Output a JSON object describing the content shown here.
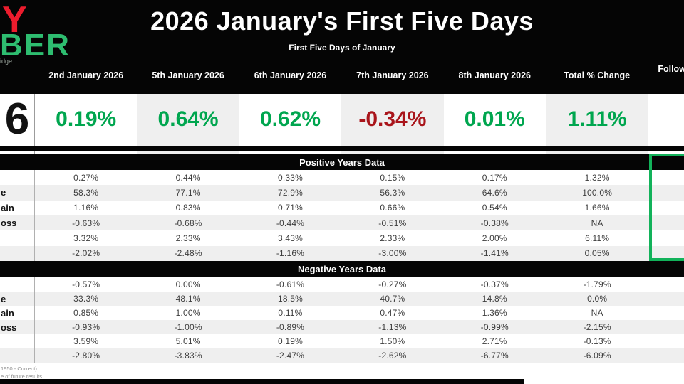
{
  "logo": {
    "fragment_red": "Y",
    "fragment_green": "BER",
    "fragment_gray": "idge"
  },
  "chart_data": {
    "type": "table",
    "title": "2026 January's First Five Days",
    "subtitle": "First Five Days of January",
    "columns": [
      "2nd January 2026",
      "5th January 2026",
      "6th January 2026",
      "7th January 2026",
      "8th January 2026",
      "Total % Change",
      "Follow"
    ],
    "current_year_row": {
      "label": "6",
      "values": [
        "0.19%",
        "0.64%",
        "0.62%",
        "-0.34%",
        "0.01%",
        "1.11%"
      ]
    },
    "sections": [
      {
        "title": "Positive Years Data",
        "rows": [
          {
            "label": "",
            "values": [
              "0.27%",
              "0.44%",
              "0.33%",
              "0.15%",
              "0.17%",
              "1.32%"
            ]
          },
          {
            "label": "e",
            "values": [
              "58.3%",
              "77.1%",
              "72.9%",
              "56.3%",
              "64.6%",
              "100.0%"
            ]
          },
          {
            "label": "ain",
            "values": [
              "1.16%",
              "0.83%",
              "0.71%",
              "0.66%",
              "0.54%",
              "1.66%"
            ]
          },
          {
            "label": "oss",
            "values": [
              "-0.63%",
              "-0.68%",
              "-0.44%",
              "-0.51%",
              "-0.38%",
              "NA"
            ]
          },
          {
            "label": "",
            "values": [
              "3.32%",
              "2.33%",
              "3.43%",
              "2.33%",
              "2.00%",
              "6.11%"
            ]
          },
          {
            "label": "",
            "values": [
              "-2.02%",
              "-2.48%",
              "-1.16%",
              "-3.00%",
              "-1.41%",
              "0.05%"
            ]
          }
        ]
      },
      {
        "title": "Negative Years Data",
        "rows": [
          {
            "label": "",
            "values": [
              "-0.57%",
              "0.00%",
              "-0.61%",
              "-0.27%",
              "-0.37%",
              "-1.79%"
            ]
          },
          {
            "label": "e",
            "values": [
              "33.3%",
              "48.1%",
              "18.5%",
              "40.7%",
              "14.8%",
              "0.0%"
            ]
          },
          {
            "label": "ain",
            "values": [
              "0.85%",
              "1.00%",
              "0.11%",
              "0.47%",
              "1.36%",
              "NA"
            ]
          },
          {
            "label": "oss",
            "values": [
              "-0.93%",
              "-1.00%",
              "-0.89%",
              "-1.13%",
              "-0.99%",
              "-2.15%"
            ]
          },
          {
            "label": "",
            "values": [
              "3.59%",
              "5.01%",
              "0.19%",
              "1.50%",
              "2.71%",
              "-0.13%"
            ]
          },
          {
            "label": "",
            "values": [
              "-2.80%",
              "-3.83%",
              "-2.47%",
              "-2.62%",
              "-6.77%",
              "-6.09%"
            ]
          }
        ]
      }
    ]
  },
  "footer": {
    "line1": "1950 - Current).",
    "line2": "e of future results"
  },
  "colors": {
    "value_green": "#00a64f",
    "value_red": "#a9151b",
    "logo_red": "#ec1c2d",
    "logo_green": "#2ebd70",
    "highlight_box_green": "#12b25a",
    "row_stripe": "#efefef",
    "bar_black": "#050505"
  }
}
